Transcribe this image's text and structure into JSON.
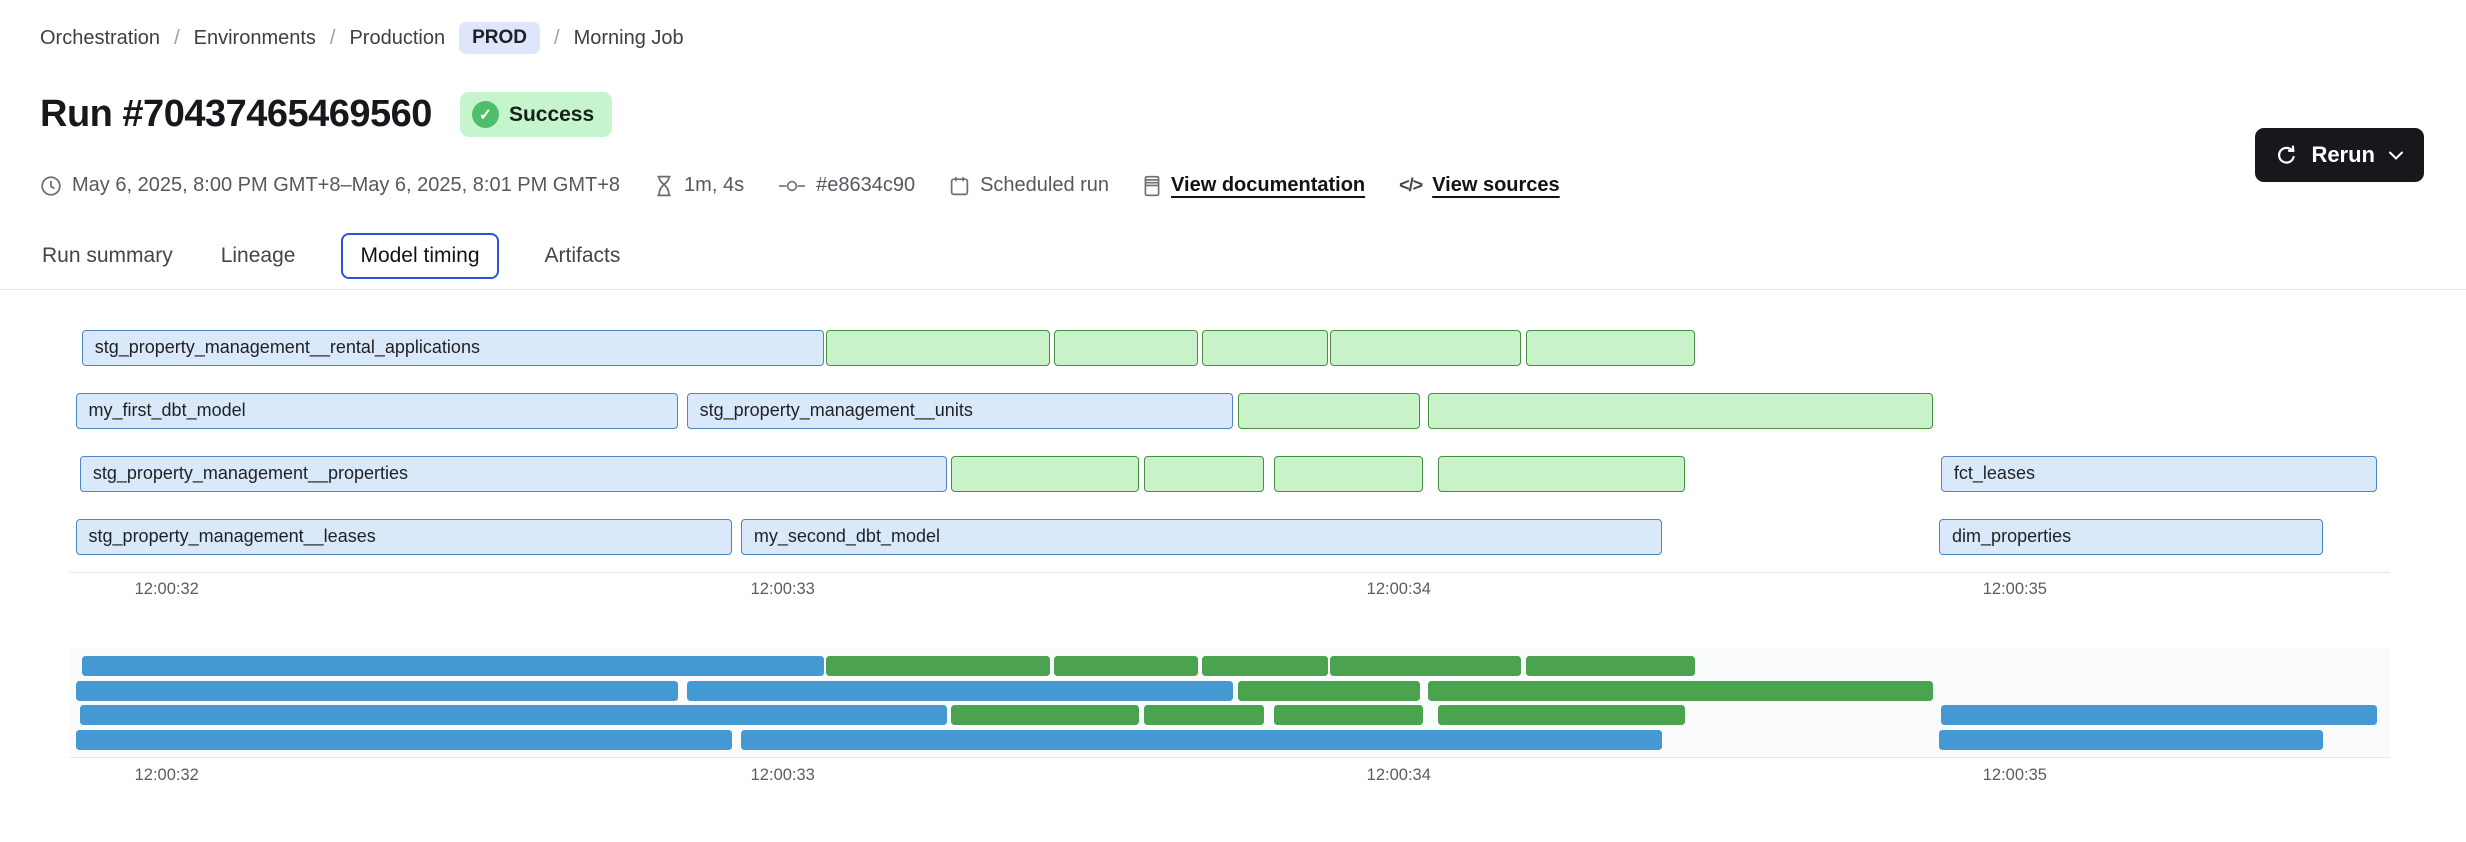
{
  "breadcrumb": {
    "separator": "/",
    "items": [
      "Orchestration",
      "Environments",
      "Production",
      "Morning Job"
    ],
    "env_badge": "PROD"
  },
  "header": {
    "title": "Run #70437465469560",
    "status": {
      "label": "Success",
      "check_glyph": "✓"
    }
  },
  "meta": {
    "time_range": "May 6, 2025, 8:00 PM GMT+8–May 6, 2025, 8:01 PM GMT+8",
    "duration": "1m, 4s",
    "commit": "#e8634c90",
    "trigger": "Scheduled run",
    "doc_link": "View documentation",
    "sources_link": "View sources",
    "code_glyph": "</>"
  },
  "actions": {
    "rerun_label": "Rerun"
  },
  "tabs": [
    {
      "label": "Run summary",
      "active": false
    },
    {
      "label": "Lineage",
      "active": false
    },
    {
      "label": "Model timing",
      "active": true
    },
    {
      "label": "Artifacts",
      "active": false
    }
  ],
  "colors": {
    "model_fill": "#d9e9fa",
    "model_border": "#4d86c2",
    "test_fill": "#c9f2ca",
    "test_border": "#43913e",
    "minimap_model": "#4599d3",
    "minimap_test": "#4ba24f",
    "status_green": "#4fbe6c",
    "tab_active_border": "#2b55d6",
    "env_badge_bg": "#dde6fb",
    "rerun_bg": "#17181b"
  },
  "chart_data": {
    "type": "gantt",
    "title": "",
    "axis": {
      "domain_seconds": [
        31.843,
        35.609
      ],
      "tick_values": [
        32,
        33,
        34,
        35
      ],
      "tick_labels": [
        "12:00:32",
        "12:00:33",
        "12:00:34",
        "12:00:35"
      ],
      "grid": false
    },
    "rows": [
      {
        "bars": [
          {
            "label": "stg_property_management__rental_applications",
            "kind": "model",
            "start": 31.862,
            "end": 33.067
          },
          {
            "label": "",
            "kind": "test",
            "start": 33.07,
            "end": 33.434
          },
          {
            "label": "",
            "kind": "test",
            "start": 33.44,
            "end": 33.674
          },
          {
            "label": "",
            "kind": "test",
            "start": 33.68,
            "end": 33.885
          },
          {
            "label": "",
            "kind": "test",
            "start": 33.888,
            "end": 34.198
          },
          {
            "label": "",
            "kind": "test",
            "start": 34.206,
            "end": 34.481
          }
        ]
      },
      {
        "bars": [
          {
            "label": "my_first_dbt_model",
            "kind": "model",
            "start": 31.852,
            "end": 32.83
          },
          {
            "label": "stg_property_management__units",
            "kind": "model",
            "start": 32.844,
            "end": 33.731
          },
          {
            "label": "",
            "kind": "test",
            "start": 33.739,
            "end": 34.034
          },
          {
            "label": "",
            "kind": "test",
            "start": 34.047,
            "end": 34.867
          }
        ]
      },
      {
        "bars": [
          {
            "label": "stg_property_management__properties",
            "kind": "model",
            "start": 31.859,
            "end": 33.266
          },
          {
            "label": "",
            "kind": "test",
            "start": 33.273,
            "end": 33.578
          },
          {
            "label": "",
            "kind": "test",
            "start": 33.586,
            "end": 33.782
          },
          {
            "label": "",
            "kind": "test",
            "start": 33.797,
            "end": 34.04
          },
          {
            "label": "",
            "kind": "test",
            "start": 34.064,
            "end": 34.465
          },
          {
            "label": "fct_leases",
            "kind": "model",
            "start": 34.88,
            "end": 35.588
          }
        ]
      },
      {
        "bars": [
          {
            "label": "stg_property_management__leases",
            "kind": "model",
            "start": 31.852,
            "end": 32.917
          },
          {
            "label": "my_second_dbt_model",
            "kind": "model",
            "start": 32.932,
            "end": 34.427
          },
          {
            "label": "dim_properties",
            "kind": "model",
            "start": 34.877,
            "end": 35.5
          }
        ]
      }
    ]
  }
}
